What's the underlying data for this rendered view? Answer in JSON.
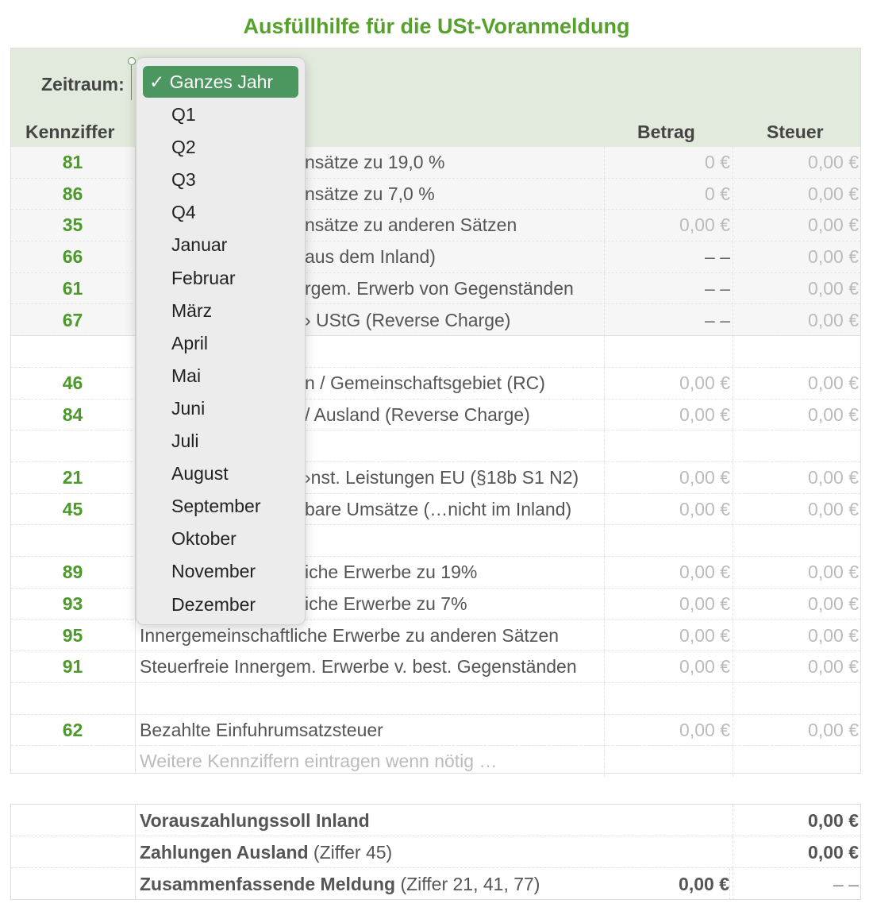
{
  "title": "Ausfüllhilfe für die USt-Voranmeldung",
  "zeitraum": {
    "label": "Zeitraum:",
    "selected": "Ganzes Jahr",
    "check_icon": "✓",
    "options": [
      "Q1",
      "Q2",
      "Q3",
      "Q4",
      "Januar",
      "Februar",
      "März",
      "April",
      "Mai",
      "Juni",
      "Juli",
      "August",
      "September",
      "Oktober",
      "November",
      "Dezember"
    ]
  },
  "columns": {
    "kennziffer": "Kennziffer",
    "betrag": "Betrag",
    "steuer": "Steuer"
  },
  "rows": [
    {
      "kz": "81",
      "desc": "nsätze zu 19,0 %",
      "betrag": "0 €",
      "steuer": "0,00 €",
      "clip": true
    },
    {
      "kz": "86",
      "desc": "nsätze zu 7,0 %",
      "betrag": "0 €",
      "steuer": "0,00 €",
      "clip": true
    },
    {
      "kz": "35",
      "desc": "nsätze zu anderen Sätzen",
      "betrag": "0,00 €",
      "steuer": "0,00 €",
      "clip": true
    },
    {
      "kz": "66",
      "desc": "aus dem Inland)",
      "betrag": "– –",
      "steuer": "0,00 €",
      "clip": true
    },
    {
      "kz": "61",
      "desc": "rgem. Erwerb von Gegenständen",
      "betrag": "– –",
      "steuer": "0,00 €",
      "clip": true
    },
    {
      "kz": "67",
      "desc": "› UStG (Reverse Charge)",
      "betrag": "– –",
      "steuer": "0,00 €",
      "clip": true
    },
    {
      "kz": "",
      "desc": "",
      "betrag": "",
      "steuer": ""
    },
    {
      "kz": "46",
      "desc": "n / Gemeinschaftsgebiet (RC)",
      "betrag": "0,00 €",
      "steuer": "0,00 €",
      "clip": true
    },
    {
      "kz": "84",
      "desc": "/ Ausland (Reverse Charge)",
      "betrag": "0,00 €",
      "steuer": "0,00 €",
      "clip": true
    },
    {
      "kz": "",
      "desc": "",
      "betrag": "",
      "steuer": ""
    },
    {
      "kz": "21",
      "desc": "›nst. Leistungen EU (§18b S1 N2)",
      "betrag": "0,00 €",
      "steuer": "0,00 €",
      "clip": true
    },
    {
      "kz": "45",
      "desc": "bare Umsätze (…nicht im Inland)",
      "betrag": "0,00 €",
      "steuer": "0,00 €",
      "clip": true
    },
    {
      "kz": "",
      "desc": "",
      "betrag": "",
      "steuer": ""
    },
    {
      "kz": "89",
      "desc": "iche Erwerbe zu 19%",
      "betrag": "0,00 €",
      "steuer": "0,00 €",
      "clip": true
    },
    {
      "kz": "93",
      "desc": "iche Erwerbe zu 7%",
      "betrag": "0,00 €",
      "steuer": "0,00 €",
      "clip": true
    },
    {
      "kz": "95",
      "desc": "Innergemeinschaftliche Erwerbe zu anderen Sätzen",
      "betrag": "0,00 €",
      "steuer": "0,00 €"
    },
    {
      "kz": "91",
      "desc": "Steuerfreie Innergem. Erwerbe v. best. Gegenständen",
      "betrag": "0,00 €",
      "steuer": "0,00 €"
    },
    {
      "kz": "",
      "desc": "",
      "betrag": "",
      "steuer": ""
    },
    {
      "kz": "62",
      "desc": "Bezahlte Einfuhrumsatzsteuer",
      "betrag": "0,00 €",
      "steuer": "0,00 €"
    }
  ],
  "placeholder": "Weitere Kennziffern eintragen wenn nötig …",
  "summary": [
    {
      "label": "Vorauszahlungssoll Inland",
      "note": "",
      "betrag": "",
      "steuer": "0,00 €"
    },
    {
      "label": "Zahlungen Ausland",
      "note": " (Ziffer 45)",
      "betrag": "",
      "steuer": "0,00 €"
    },
    {
      "label": "Zusammenfassende Meldung",
      "note": " (Ziffer 21, 41, 77)",
      "betrag": "0,00 €",
      "steuer": "– –"
    }
  ],
  "colors": {
    "accent": "#55a12c",
    "selected": "#4c9660",
    "header_bg": "#e2eadd"
  }
}
